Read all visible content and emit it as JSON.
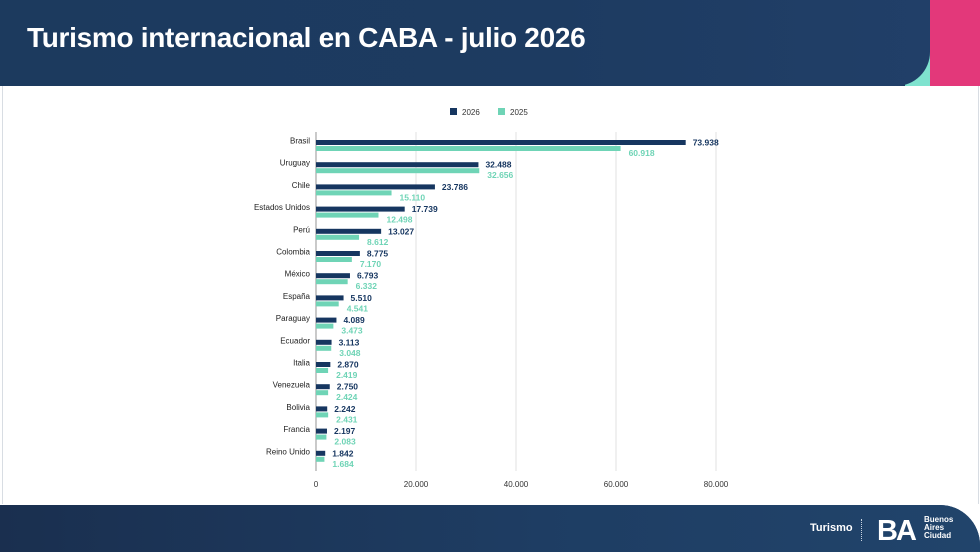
{
  "header": {
    "title": "Turismo internacional en CABA - julio 2026"
  },
  "footer": {
    "label": "Turismo",
    "logo_mark": "BA",
    "logo_lines": [
      "Buenos",
      "Aires",
      "Ciudad"
    ]
  },
  "colors": {
    "primary": "#1b3a5f",
    "series_2026": "#163660",
    "series_2025": "#6fd4b6",
    "accent_pink": "#e3387a",
    "accent_mint": "#7fe3cf"
  },
  "chart_data": {
    "type": "bar",
    "orientation": "horizontal",
    "categories": [
      "Brasil",
      "Uruguay",
      "Chile",
      "Estados Unidos",
      "Perú",
      "Colombia",
      "México",
      "España",
      "Paraguay",
      "Ecuador",
      "Italia",
      "Venezuela",
      "Bolivia",
      "Francia",
      "Reino Unido"
    ],
    "series": [
      {
        "name": "2026",
        "values": [
          73938,
          32488,
          23786,
          17739,
          13027,
          8775,
          6793,
          5510,
          4089,
          3113,
          2870,
          2750,
          2242,
          2197,
          1842
        ],
        "labels": [
          "73.938",
          "32.488",
          "23.786",
          "17.739",
          "13.027",
          "8.775",
          "6.793",
          "5.510",
          "4.089",
          "3.113",
          "2.870",
          "2.750",
          "2.242",
          "2.197",
          "1.842"
        ]
      },
      {
        "name": "2025",
        "values": [
          60918,
          32656,
          15110,
          12498,
          8612,
          7170,
          6332,
          4541,
          3473,
          3048,
          2419,
          2424,
          2431,
          2083,
          1684
        ],
        "labels": [
          "60.918",
          "32.656",
          "15.110",
          "12.498",
          "8.612",
          "7.170",
          "6.332",
          "4.541",
          "3.473",
          "3.048",
          "2.419",
          "2.424",
          "2.431",
          "2.083",
          "1.684"
        ]
      }
    ],
    "xlim": [
      0,
      80000
    ],
    "ticks": [
      0,
      20000,
      40000,
      60000,
      80000
    ],
    "tick_labels": [
      "0",
      "20.000",
      "40.000",
      "60.000",
      "80.000"
    ],
    "grid": true,
    "legend_position": "top-center"
  }
}
